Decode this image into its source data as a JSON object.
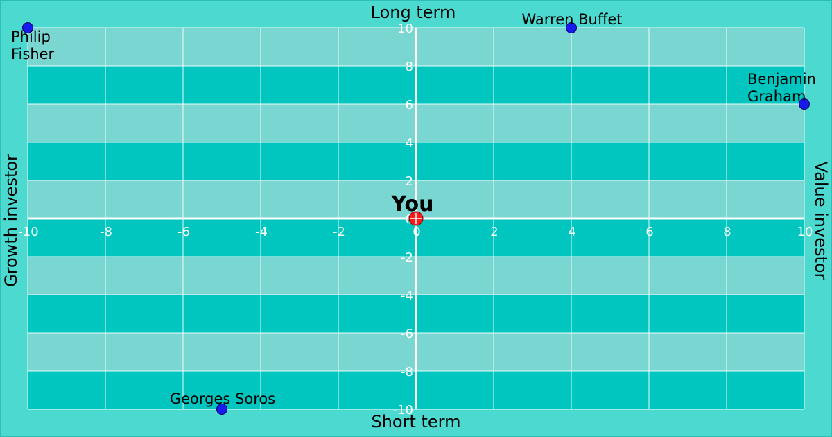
{
  "chart_data": {
    "type": "scatter",
    "xlim": [
      -10,
      10
    ],
    "ylim": [
      -10,
      10
    ],
    "x_ticks": [
      -10,
      -8,
      -6,
      -4,
      -2,
      0,
      2,
      4,
      6,
      8,
      10
    ],
    "y_ticks": [
      -10,
      -8,
      -6,
      -4,
      -2,
      0,
      2,
      4,
      6,
      8,
      10
    ],
    "grid": true,
    "axis_titles": {
      "top": "Long term",
      "bottom": "Short term",
      "left": "Growth investor",
      "right": "Value investor"
    },
    "points": [
      {
        "label": [
          "Philip",
          "Fisher"
        ],
        "x": -10,
        "y": 10,
        "color": "#1a1aee"
      },
      {
        "label": [
          "Warren Buffet"
        ],
        "x": 4,
        "y": 10,
        "color": "#1a1aee"
      },
      {
        "label": [
          "Benjamin",
          "Graham"
        ],
        "x": 10,
        "y": 6,
        "color": "#1a1aee"
      },
      {
        "label": [
          "Georges Soros"
        ],
        "x": -5,
        "y": -10,
        "color": "#1a1aee"
      },
      {
        "label": [
          "You"
        ],
        "x": 0,
        "y": 0,
        "color": "#ff1a1a",
        "highlight": true
      }
    ],
    "colors": {
      "background": "#4cd9cf",
      "band_light": "#79d6d1",
      "band_dark": "#00c6bf",
      "axis": "#ffffff"
    }
  }
}
